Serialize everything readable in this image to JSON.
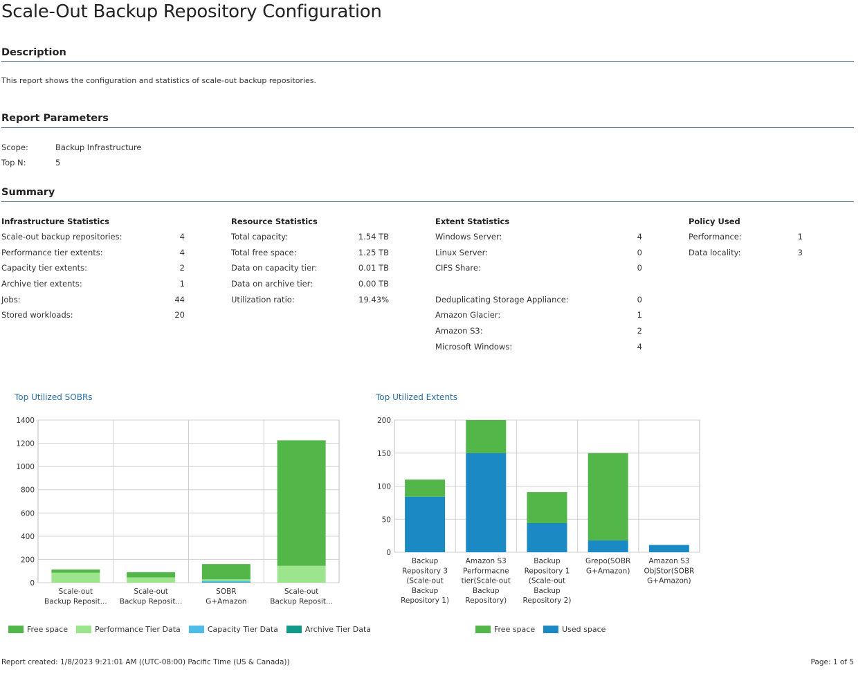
{
  "report": {
    "title": "Scale-Out Backup Repository Configuration",
    "description_heading": "Description",
    "description_text": "This report shows the configuration and statistics of scale-out backup repositories.",
    "params_heading": "Report Parameters",
    "params": [
      {
        "label": "Scope:",
        "value": "Backup Infrastructure"
      },
      {
        "label": "Top N:",
        "value": "5"
      }
    ],
    "summary_heading": "Summary"
  },
  "summary": {
    "infrastructure": {
      "heading": "Infrastructure Statistics",
      "rows": [
        {
          "label": "Scale-out backup repositories:",
          "value": "4"
        },
        {
          "label": "Performance tier extents:",
          "value": "4"
        },
        {
          "label": "Capacity tier extents:",
          "value": "2"
        },
        {
          "label": "Archive tier extents:",
          "value": "1"
        },
        {
          "label": "Jobs:",
          "value": "44"
        },
        {
          "label": "Stored workloads:",
          "value": "20"
        }
      ]
    },
    "resource": {
      "heading": "Resource Statistics",
      "rows": [
        {
          "label": "Total capacity:",
          "value": "1.54 TB"
        },
        {
          "label": "Total free space:",
          "value": "1.25 TB"
        },
        {
          "label": "Data on capacity tier:",
          "value": "0.01 TB"
        },
        {
          "label": "Data on archive tier:",
          "value": "0.00 TB"
        },
        {
          "label": "Utilization ratio:",
          "value": "19.43%"
        }
      ]
    },
    "extent": {
      "heading": "Extent Statistics",
      "rows": [
        {
          "label": "Windows Server:",
          "value": "4"
        },
        {
          "label": "Linux Server:",
          "value": "0"
        },
        {
          "label": "CIFS Share:",
          "value": "0"
        },
        {
          "label": "",
          "value": ""
        },
        {
          "label": "Deduplicating Storage Appliance:",
          "value": "0"
        },
        {
          "label": "Amazon Glacier:",
          "value": "1"
        },
        {
          "label": "Amazon S3:",
          "value": "2"
        },
        {
          "label": "Microsoft Windows:",
          "value": "4"
        }
      ]
    },
    "policy": {
      "heading": "Policy Used",
      "rows": [
        {
          "label": "Performance:",
          "value": "1"
        },
        {
          "label": "Data locality:",
          "value": "3"
        }
      ]
    }
  },
  "colors": {
    "free_space": "#52b748",
    "performance_tier": "#9de58d",
    "capacity_tier": "#4dbde8",
    "archive_tier": "#12998a",
    "used_space": "#1b8ac4",
    "rule": "#4a7088",
    "chart_title": "#2a6fa8"
  },
  "chart_data": [
    {
      "type": "bar",
      "stacked": true,
      "title": "Top Utilized SOBRs",
      "categories": [
        [
          "Scale-out",
          "Backup Reposit..."
        ],
        [
          "Scale-out",
          "Backup Reposit..."
        ],
        [
          "SOBR",
          "G+Amazon"
        ],
        [
          "Scale-out",
          "Backup Reposit..."
        ]
      ],
      "series": [
        {
          "name": "Archive Tier Data",
          "color_key": "archive_tier",
          "values": [
            0,
            0,
            3,
            0
          ]
        },
        {
          "name": "Capacity Tier Data",
          "color_key": "capacity_tier",
          "values": [
            0,
            0,
            12,
            0
          ]
        },
        {
          "name": "Performance Tier Data",
          "color_key": "performance_tier",
          "values": [
            85,
            45,
            13,
            145
          ]
        },
        {
          "name": "Free space",
          "color_key": "free_space",
          "values": [
            28,
            45,
            132,
            1080
          ]
        }
      ],
      "legend_order": [
        "Free space",
        "Performance Tier Data",
        "Capacity Tier Data",
        "Archive Tier Data"
      ],
      "yticks": [
        0,
        200,
        400,
        600,
        800,
        1000,
        1200,
        1400
      ],
      "ylim": [
        0,
        1400
      ],
      "grid": true
    },
    {
      "type": "bar",
      "stacked": true,
      "title": "Top Utilized Extents",
      "categories": [
        [
          "Backup",
          "Repository 3",
          "(Scale-out",
          "Backup",
          "Repository 1)"
        ],
        [
          "Amazon S3",
          "Performacne",
          "tier(Scale-out",
          "Backup",
          "Repository)"
        ],
        [
          "Backup",
          "Repository 1",
          "(Scale-out",
          "Backup",
          "Repository 2)"
        ],
        [
          "Grepo(SOBR",
          "G+Amazon)"
        ],
        [
          "Amazon S3",
          "ObjStor(SOBR",
          "G+Amazon)"
        ]
      ],
      "series": [
        {
          "name": "Used space",
          "color_key": "used_space",
          "values": [
            84,
            150,
            44,
            18,
            11
          ]
        },
        {
          "name": "Free space",
          "color_key": "free_space",
          "values": [
            26,
            50,
            47,
            132,
            0
          ]
        }
      ],
      "legend_order": [
        "Free space",
        "Used space"
      ],
      "yticks": [
        0,
        50,
        100,
        150,
        200
      ],
      "ylim": [
        0,
        200
      ],
      "grid": true
    }
  ],
  "footer": {
    "created": "Report created: 1/8/2023 9:21:01 AM ((UTC-08:00) Pacific Time (US & Canada))",
    "page": "Page: 1 of 5"
  }
}
